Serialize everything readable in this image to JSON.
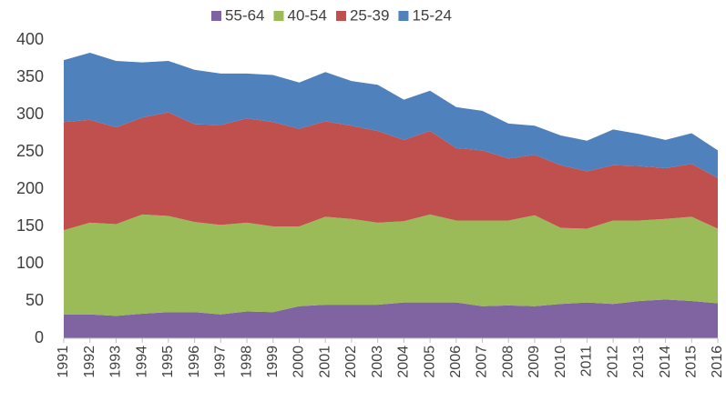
{
  "chart_data": {
    "type": "stacked_area",
    "categories": [
      "1991",
      "1992",
      "1993",
      "1994",
      "1995",
      "1996",
      "1997",
      "1998",
      "1999",
      "2000",
      "2001",
      "2002",
      "2003",
      "2004",
      "2005",
      "2006",
      "2007",
      "2008",
      "2009",
      "2010",
      "2011",
      "2012",
      "2013",
      "2014",
      "2015",
      "2016"
    ],
    "series": [
      {
        "name": "55-64",
        "color": "#8064a2",
        "values": [
          32,
          32,
          30,
          33,
          35,
          35,
          32,
          36,
          35,
          43,
          45,
          45,
          45,
          48,
          48,
          48,
          43,
          44,
          43,
          46,
          48,
          46,
          50,
          52,
          50,
          47
        ]
      },
      {
        "name": "40-54",
        "color": "#9bbb59",
        "values": [
          113,
          123,
          123,
          133,
          129,
          121,
          120,
          119,
          115,
          107,
          118,
          115,
          110,
          109,
          118,
          110,
          115,
          114,
          122,
          102,
          99,
          112,
          108,
          108,
          113,
          100
        ]
      },
      {
        "name": "25-39",
        "color": "#c0504d",
        "values": [
          145,
          138,
          130,
          130,
          139,
          131,
          134,
          140,
          140,
          131,
          128,
          125,
          123,
          109,
          112,
          97,
          94,
          83,
          81,
          84,
          77,
          74,
          73,
          68,
          71,
          68
        ]
      },
      {
        "name": "15-24",
        "color": "#4f81bd",
        "values": [
          83,
          90,
          89,
          74,
          69,
          73,
          69,
          60,
          63,
          62,
          66,
          60,
          62,
          54,
          54,
          55,
          53,
          47,
          39,
          40,
          41,
          48,
          43,
          38,
          41,
          37
        ]
      }
    ],
    "ylim": [
      0,
      400
    ],
    "yticks": [
      0,
      50,
      100,
      150,
      200,
      250,
      300,
      350,
      400
    ],
    "legend": "top"
  }
}
